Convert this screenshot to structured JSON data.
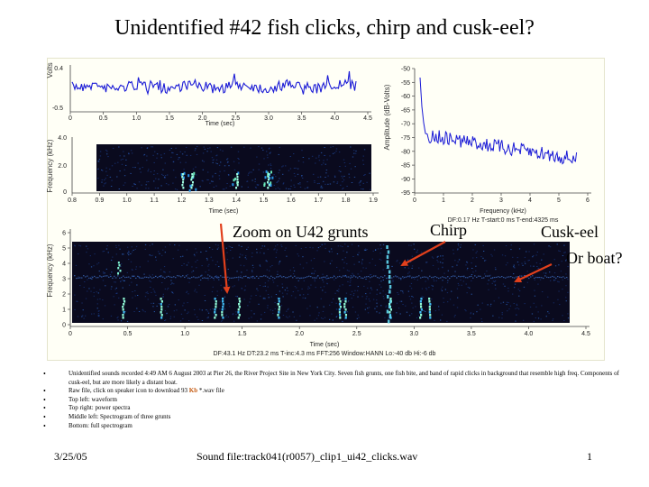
{
  "slide": {
    "title": "Unidentified #42 fish clicks, chirp and cusk-eel?"
  },
  "panels": {
    "waveform": {
      "ylabel": "Volts",
      "xlabel": "Time (sec)",
      "yticks": [
        "0.4",
        "-0.5"
      ],
      "xticks": [
        "0",
        "0.5",
        "1.0",
        "1.5",
        "2.0",
        "2.5",
        "3.0",
        "3.5",
        "4.0",
        "4.5"
      ]
    },
    "spectrogram_zoom": {
      "ylabel": "Frequency (kHz)",
      "xlabel": "Time (sec)",
      "yticks": [
        "4.0",
        "2.0",
        "0"
      ],
      "xticks": [
        "0.8",
        "0.9",
        "1.0",
        "1.1",
        "1.2",
        "1.3",
        "1.4",
        "1.5",
        "1.6",
        "1.7",
        "1.8",
        "1.9"
      ]
    },
    "power_spectrum": {
      "ylabel": "Amplitude (dB-Volts)",
      "xlabel": "Frequency (kHz)",
      "yticks": [
        "-50",
        "-55",
        "-60",
        "-65",
        "-70",
        "-75",
        "-80",
        "-85",
        "-90",
        "-95"
      ],
      "xticks": [
        "0",
        "1",
        "2",
        "3",
        "4",
        "5",
        "6"
      ],
      "params": "DF:0.17 Hz    T-start:0 ms    T-end:4325 ms"
    },
    "spectrogram_full": {
      "ylabel": "Frequency (kHz)",
      "xlabel": "Time (sec)",
      "yticks": [
        "6",
        "5",
        "4",
        "3",
        "2",
        "1",
        "0"
      ],
      "xticks": [
        "0",
        "0.5",
        "1.0",
        "1.5",
        "2.0",
        "2.5",
        "3.0",
        "3.5",
        "4.0",
        "4.5"
      ],
      "params": "DF:43.1 Hz    DT:23.2 ms    T-inc:4.3 ms    FFT:256    Window:HANN    Lo:-40 db    Hi:-6 db"
    }
  },
  "callouts": {
    "zoom": "Zoom on U42 grunts",
    "chirp": "Chirp",
    "cusk_line1": "Cusk-eel",
    "cusk_line2": "Or boat?",
    "arrow_color": "#e2401c"
  },
  "notes": [
    "Unidentified sounds recorded 4:49 AM 6 August 2003 at Pier 26, the River Project Site in New York City. Seven fish grunts, one fish bite, and band of rapid clicks in background that resemble high freq. Components of cusk-eel, but are more likely a distant boat.",
    "Raw file, click on speaker icon to download 93",
    "Top left: waveform",
    "Top right: power spectra",
    "Middle left: Spectrogram of three grunts",
    "Bottom: full spectrogram"
  ],
  "note_raw": {
    "size": "Kb",
    "suffix": "*.wav file"
  },
  "footer": {
    "date": "3/25/05",
    "sound_file": "Sound file:track041(r0057)_clip1_ui42_clicks.wav",
    "page": "1"
  },
  "colors": {
    "trace": "#1a1ad6",
    "spectrogram_bg": "#0a0a1e",
    "highlight": "#c55a11"
  }
}
